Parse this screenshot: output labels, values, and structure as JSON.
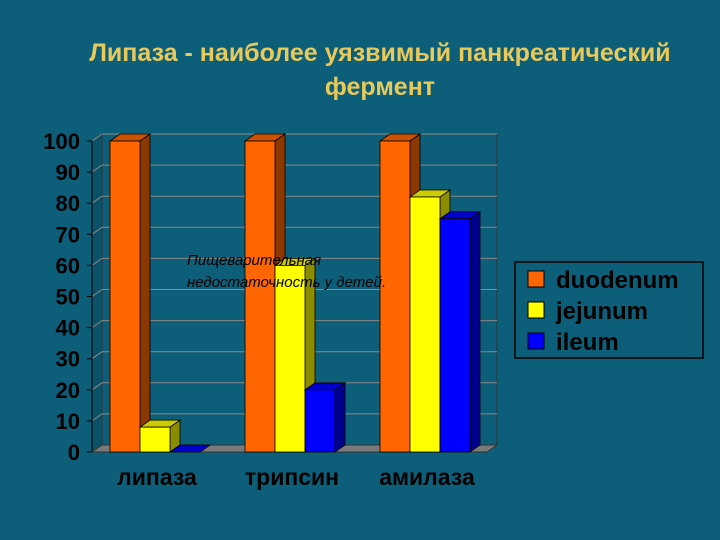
{
  "slide": {
    "title_line1": "Липаза - наиболее уязвимый панкреатический",
    "title_line2": "фермент",
    "background": "#0d5e78",
    "title_color": "#e8c95a"
  },
  "chart_data": {
    "type": "bar",
    "title": "Липаза - наиболее уязвимый панкреатический фермент",
    "categories": [
      "липаза",
      "трипсин",
      "амилаза"
    ],
    "series": [
      {
        "name": "duodenum",
        "values": [
          100,
          100,
          100
        ],
        "color": "#ff6600"
      },
      {
        "name": "jejunum",
        "values": [
          8,
          60,
          82
        ],
        "color": "#ffff00"
      },
      {
        "name": "ileum",
        "values": [
          0,
          20,
          75
        ],
        "color": "#0000ff"
      }
    ],
    "ylim": [
      0,
      100
    ],
    "yticks": [
      "0",
      "10",
      "20",
      "30",
      "40",
      "50",
      "60",
      "70",
      "80",
      "90",
      "100"
    ],
    "grid": true,
    "legend_position": "right",
    "annotation": "Пищеварительная недостаточность у детей."
  }
}
